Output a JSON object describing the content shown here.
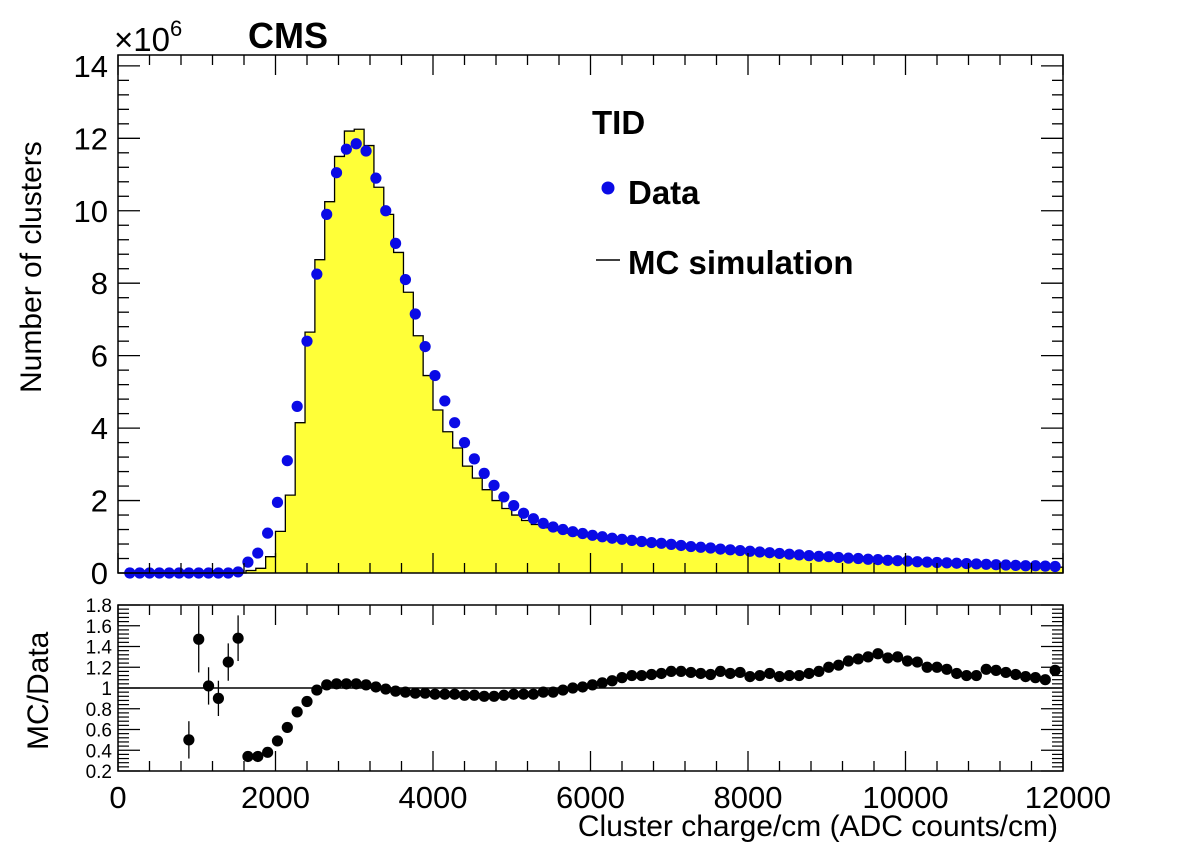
{
  "chart_data": [
    {
      "type": "histogram",
      "experiment_label": "CMS",
      "scale_factor_label": "×10",
      "scale_factor_exponent": "6",
      "region_label": "TID",
      "ylabel": "Number of clusters",
      "xlim": [
        0,
        12000
      ],
      "ylim": [
        0,
        14.3
      ],
      "yticks": [
        0,
        2,
        4,
        6,
        8,
        10,
        12,
        14
      ],
      "xticks": [
        0,
        2000,
        4000,
        6000,
        8000,
        10000,
        12000
      ],
      "legend": {
        "position": "top-right",
        "data_label": "Data",
        "mc_label": "MC simulation"
      },
      "colors": {
        "data": "#0a0ae6",
        "mc_fill": "#ffff38",
        "mc_line": "#000000"
      },
      "data_series": {
        "name": "Data",
        "x": [
          150,
          275,
          400,
          525,
          650,
          775,
          900,
          1025,
          1150,
          1275,
          1400,
          1525,
          1650,
          1775,
          1900,
          2025,
          2150,
          2275,
          2400,
          2525,
          2650,
          2775,
          2900,
          3025,
          3150,
          3275,
          3400,
          3525,
          3650,
          3775,
          3900,
          4025,
          4150,
          4275,
          4400,
          4525,
          4650,
          4775,
          4900,
          5025,
          5150,
          5275,
          5400,
          5525,
          5650,
          5775,
          5900,
          6025,
          6150,
          6275,
          6400,
          6525,
          6650,
          6775,
          6900,
          7025,
          7150,
          7275,
          7400,
          7525,
          7650,
          7775,
          7900,
          8025,
          8150,
          8275,
          8400,
          8525,
          8650,
          8775,
          8900,
          9025,
          9150,
          9275,
          9400,
          9525,
          9650,
          9775,
          9900,
          10025,
          10150,
          10275,
          10400,
          10525,
          10650,
          10775,
          10900,
          11025,
          11150,
          11275,
          11400,
          11525,
          11650,
          11775,
          11900
        ],
        "y": [
          0,
          0,
          0,
          0,
          0,
          0,
          0,
          0,
          0,
          0,
          0,
          0.03,
          0.3,
          0.55,
          1.1,
          1.95,
          3.1,
          4.6,
          6.4,
          8.25,
          9.9,
          11.05,
          11.7,
          11.85,
          11.65,
          10.9,
          10.0,
          9.1,
          8.1,
          7.15,
          6.25,
          5.45,
          4.75,
          4.15,
          3.6,
          3.15,
          2.75,
          2.42,
          2.1,
          1.86,
          1.65,
          1.5,
          1.37,
          1.27,
          1.2,
          1.14,
          1.09,
          1.04,
          1.0,
          0.96,
          0.93,
          0.9,
          0.87,
          0.84,
          0.82,
          0.79,
          0.76,
          0.73,
          0.71,
          0.69,
          0.66,
          0.64,
          0.62,
          0.6,
          0.58,
          0.56,
          0.54,
          0.52,
          0.5,
          0.48,
          0.46,
          0.45,
          0.43,
          0.41,
          0.4,
          0.38,
          0.37,
          0.35,
          0.34,
          0.33,
          0.31,
          0.3,
          0.29,
          0.28,
          0.27,
          0.26,
          0.25,
          0.24,
          0.23,
          0.22,
          0.21,
          0.2,
          0.2,
          0.19,
          0.18
        ]
      },
      "mc_series": {
        "name": "MC simulation",
        "bin_width": 125,
        "bin_start": 0,
        "y": [
          0,
          0,
          0,
          0,
          0,
          0,
          0,
          0,
          0,
          0,
          0,
          0,
          0,
          0.07,
          0.13,
          0.45,
          1.15,
          2.15,
          4.15,
          6.65,
          8.65,
          10.25,
          11.5,
          12.2,
          12.25,
          11.8,
          10.65,
          9.9,
          8.85,
          7.75,
          6.55,
          5.45,
          4.5,
          3.9,
          3.45,
          2.95,
          2.62,
          2.3,
          2.0,
          1.78,
          1.6,
          1.45,
          1.34,
          1.25,
          1.17,
          1.1,
          1.05,
          1.0,
          0.96,
          0.92,
          0.89,
          0.86,
          0.83,
          0.8,
          0.78,
          0.75,
          0.73,
          0.7,
          0.68,
          0.66,
          0.64,
          0.62,
          0.6,
          0.58,
          0.56,
          0.54,
          0.52,
          0.5,
          0.48,
          0.46,
          0.45,
          0.43,
          0.41,
          0.4,
          0.38,
          0.37,
          0.35,
          0.34,
          0.33,
          0.31,
          0.3,
          0.29,
          0.28,
          0.27,
          0.26,
          0.25,
          0.24,
          0.23,
          0.22,
          0.21,
          0.2,
          0.2,
          0.19,
          0.18,
          0.17,
          0.16
        ]
      }
    },
    {
      "type": "scatter",
      "ylabel": "MC/Data",
      "xlabel": "Cluster charge/cm (ADC counts/cm)",
      "xlim": [
        0,
        12000
      ],
      "ylim": [
        0.2,
        1.8
      ],
      "yticks": [
        0.2,
        0.4,
        0.6,
        0.8,
        1,
        1.2,
        1.4,
        1.6,
        1.8
      ],
      "xticks": [
        0,
        2000,
        4000,
        6000,
        8000,
        10000,
        12000
      ],
      "reference_line": 1,
      "color": "#000000",
      "points": {
        "x": [
          900,
          1025,
          1150,
          1275,
          1400,
          1525,
          1650,
          1775,
          1900,
          2025,
          2150,
          2275,
          2400,
          2525,
          2650,
          2775,
          2900,
          3025,
          3150,
          3275,
          3400,
          3525,
          3650,
          3775,
          3900,
          4025,
          4150,
          4275,
          4400,
          4525,
          4650,
          4775,
          4900,
          5025,
          5150,
          5275,
          5400,
          5525,
          5650,
          5775,
          5900,
          6025,
          6150,
          6275,
          6400,
          6525,
          6650,
          6775,
          6900,
          7025,
          7150,
          7275,
          7400,
          7525,
          7650,
          7775,
          7900,
          8025,
          8150,
          8275,
          8400,
          8525,
          8650,
          8775,
          8900,
          9025,
          9150,
          9275,
          9400,
          9525,
          9650,
          9775,
          9900,
          10025,
          10150,
          10275,
          10400,
          10525,
          10650,
          10775,
          10900,
          11025,
          11150,
          11275,
          11400,
          11525,
          11650,
          11775,
          11900
        ],
        "y": [
          0.5,
          1.47,
          1.02,
          0.9,
          1.25,
          1.48,
          0.34,
          0.34,
          0.38,
          0.49,
          0.62,
          0.77,
          0.87,
          0.98,
          1.03,
          1.04,
          1.04,
          1.04,
          1.03,
          1.01,
          0.99,
          0.97,
          0.96,
          0.95,
          0.95,
          0.94,
          0.94,
          0.94,
          0.93,
          0.93,
          0.92,
          0.92,
          0.93,
          0.94,
          0.94,
          0.94,
          0.96,
          0.96,
          0.98,
          1.0,
          1.01,
          1.03,
          1.05,
          1.07,
          1.1,
          1.12,
          1.12,
          1.13,
          1.14,
          1.16,
          1.16,
          1.15,
          1.14,
          1.13,
          1.16,
          1.14,
          1.15,
          1.11,
          1.12,
          1.14,
          1.11,
          1.12,
          1.12,
          1.14,
          1.16,
          1.2,
          1.22,
          1.26,
          1.28,
          1.3,
          1.33,
          1.29,
          1.3,
          1.26,
          1.25,
          1.2,
          1.2,
          1.18,
          1.14,
          1.12,
          1.12,
          1.18,
          1.17,
          1.15,
          1.13,
          1.11,
          1.1,
          1.08,
          1.17
        ],
        "err": [
          0.18,
          0.32,
          0.18,
          0.17,
          0.18,
          0.22,
          0.02,
          0.02,
          0.02,
          0.02,
          0.01,
          0.01,
          0.01,
          0.01,
          0.01,
          0.01,
          0.01,
          0.01,
          0.01,
          0.01,
          0.01,
          0.01,
          0.01,
          0.01,
          0.01,
          0.01,
          0.01,
          0.01,
          0.01,
          0.01,
          0.01,
          0.01,
          0.01,
          0.01,
          0.01,
          0.01,
          0.01,
          0.01,
          0.01,
          0.01,
          0.01,
          0.01,
          0.01,
          0.01,
          0.01,
          0.01,
          0.01,
          0.01,
          0.01,
          0.01,
          0.01,
          0.01,
          0.01,
          0.01,
          0.01,
          0.01,
          0.01,
          0.01,
          0.01,
          0.01,
          0.01,
          0.01,
          0.01,
          0.01,
          0.01,
          0.01,
          0.01,
          0.01,
          0.01,
          0.01,
          0.01,
          0.01,
          0.01,
          0.01,
          0.01,
          0.01,
          0.01,
          0.01,
          0.01,
          0.01,
          0.01,
          0.01,
          0.01,
          0.01,
          0.01,
          0.01,
          0.01,
          0.01,
          0.01
        ]
      }
    }
  ]
}
